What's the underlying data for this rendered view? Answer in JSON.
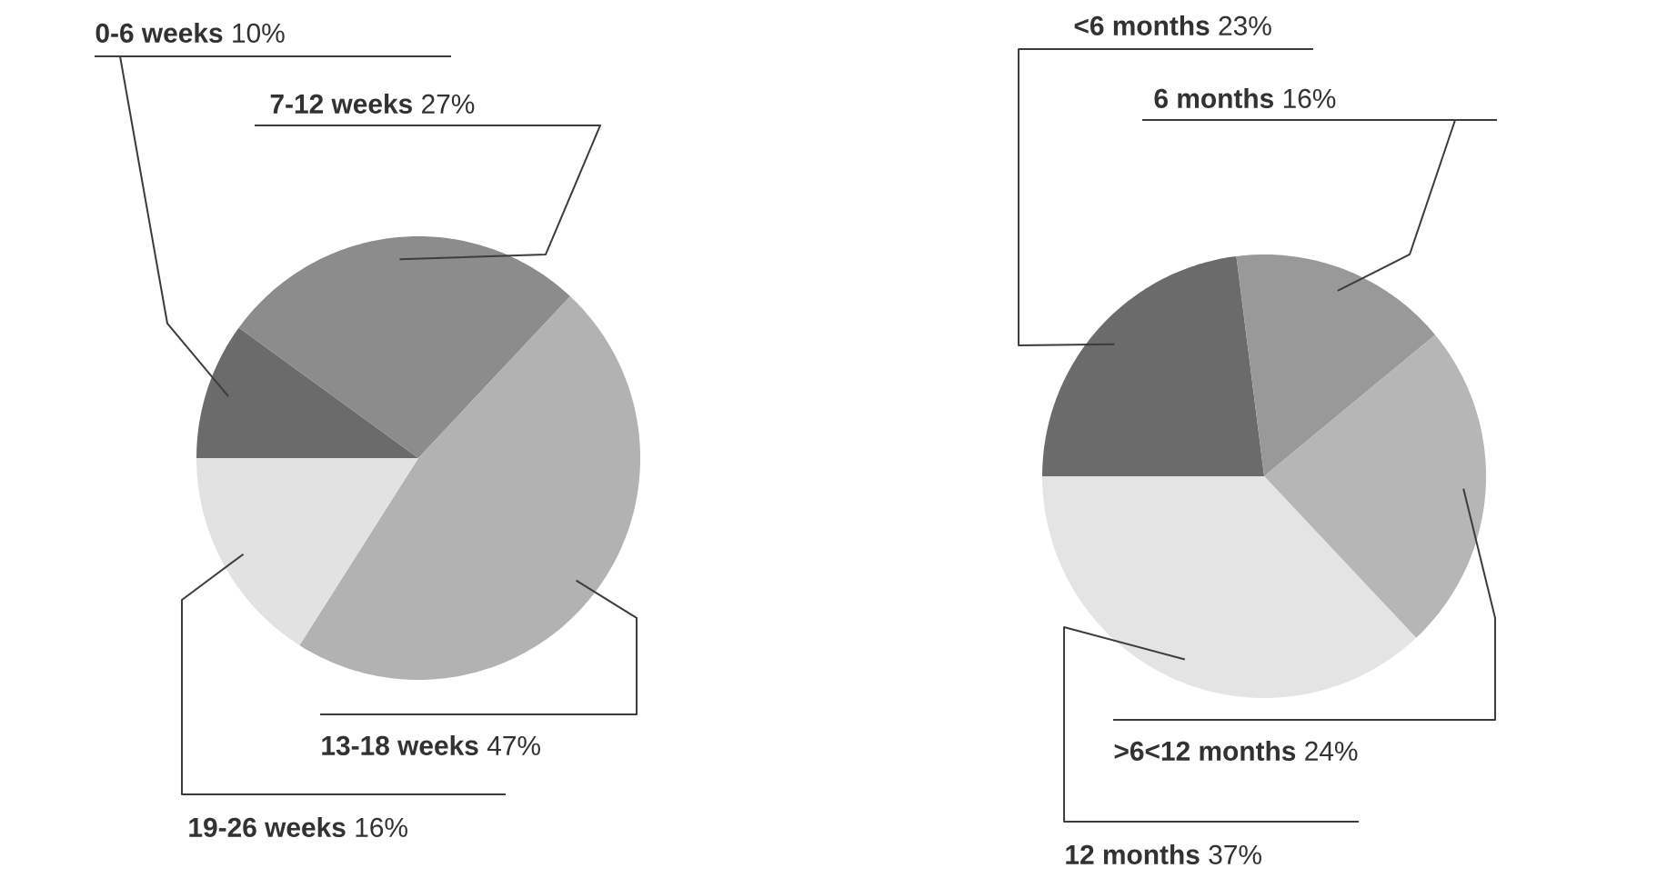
{
  "chart_data": [
    {
      "type": "pie",
      "categories": [
        "0-6 weeks",
        "7-12 weeks",
        "13-18 weeks",
        "19-26 weeks"
      ],
      "values": [
        10,
        27,
        47,
        16
      ],
      "value_labels": [
        "10%",
        "27%",
        "47%",
        "16%"
      ],
      "colors": [
        "#6b6b6b",
        "#8c8c8c",
        "#b2b2b2",
        "#e2e2e2"
      ]
    },
    {
      "type": "pie",
      "categories": [
        "<6 months",
        "6 months",
        ">6<12 months",
        "12 months"
      ],
      "values": [
        23,
        16,
        24,
        37
      ],
      "value_labels": [
        "23%",
        "16%",
        "24%",
        "37%"
      ],
      "colors": [
        "#6b6b6b",
        "#999999",
        "#b6b6b6",
        "#e4e4e4"
      ]
    }
  ]
}
